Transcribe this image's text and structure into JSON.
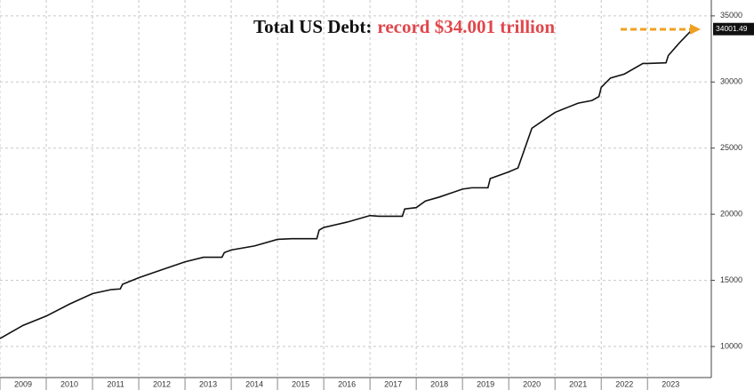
{
  "chart_data": {
    "type": "line",
    "annotation": {
      "lead": "Total US Debt:",
      "highlight": "record $34.001 trillion"
    },
    "x": [
      2009.0,
      2009.5,
      2010.0,
      2010.5,
      2011.0,
      2011.4,
      2011.6,
      2011.65,
      2012.0,
      2012.5,
      2013.0,
      2013.4,
      2013.8,
      2013.85,
      2014.0,
      2014.5,
      2015.0,
      2015.3,
      2015.85,
      2015.9,
      2016.0,
      2016.5,
      2017.0,
      2017.2,
      2017.7,
      2017.75,
      2018.0,
      2018.2,
      2018.5,
      2019.0,
      2019.2,
      2019.55,
      2019.6,
      2020.0,
      2020.2,
      2020.35,
      2020.5,
      2021.0,
      2021.5,
      2021.8,
      2021.95,
      2022.0,
      2022.2,
      2022.5,
      2022.9,
      2023.0,
      2023.4,
      2023.45,
      2023.7,
      2023.95,
      2024.0
    ],
    "values": [
      10600,
      11600,
      12300,
      13200,
      14000,
      14300,
      14350,
      14700,
      15200,
      15800,
      16400,
      16750,
      16750,
      17100,
      17300,
      17600,
      18100,
      18150,
      18150,
      18800,
      19000,
      19400,
      19900,
      19850,
      19850,
      20400,
      20500,
      21000,
      21300,
      21900,
      22000,
      22000,
      22700,
      23200,
      23500,
      25000,
      26500,
      27700,
      28400,
      28600,
      28900,
      29600,
      30300,
      30600,
      31400,
      31400,
      31450,
      32000,
      33000,
      33900,
      34001.49
    ],
    "color": "#111111",
    "xlim": [
      2009,
      2024.38
    ],
    "xticks": [
      2009,
      2010,
      2011,
      2012,
      2013,
      2014,
      2015,
      2016,
      2017,
      2018,
      2019,
      2020,
      2021,
      2022,
      2023
    ],
    "ylim": [
      7650,
      36200
    ],
    "yticks": [
      10000,
      15000,
      20000,
      25000,
      30000,
      35000
    ],
    "grid": true
  }
}
